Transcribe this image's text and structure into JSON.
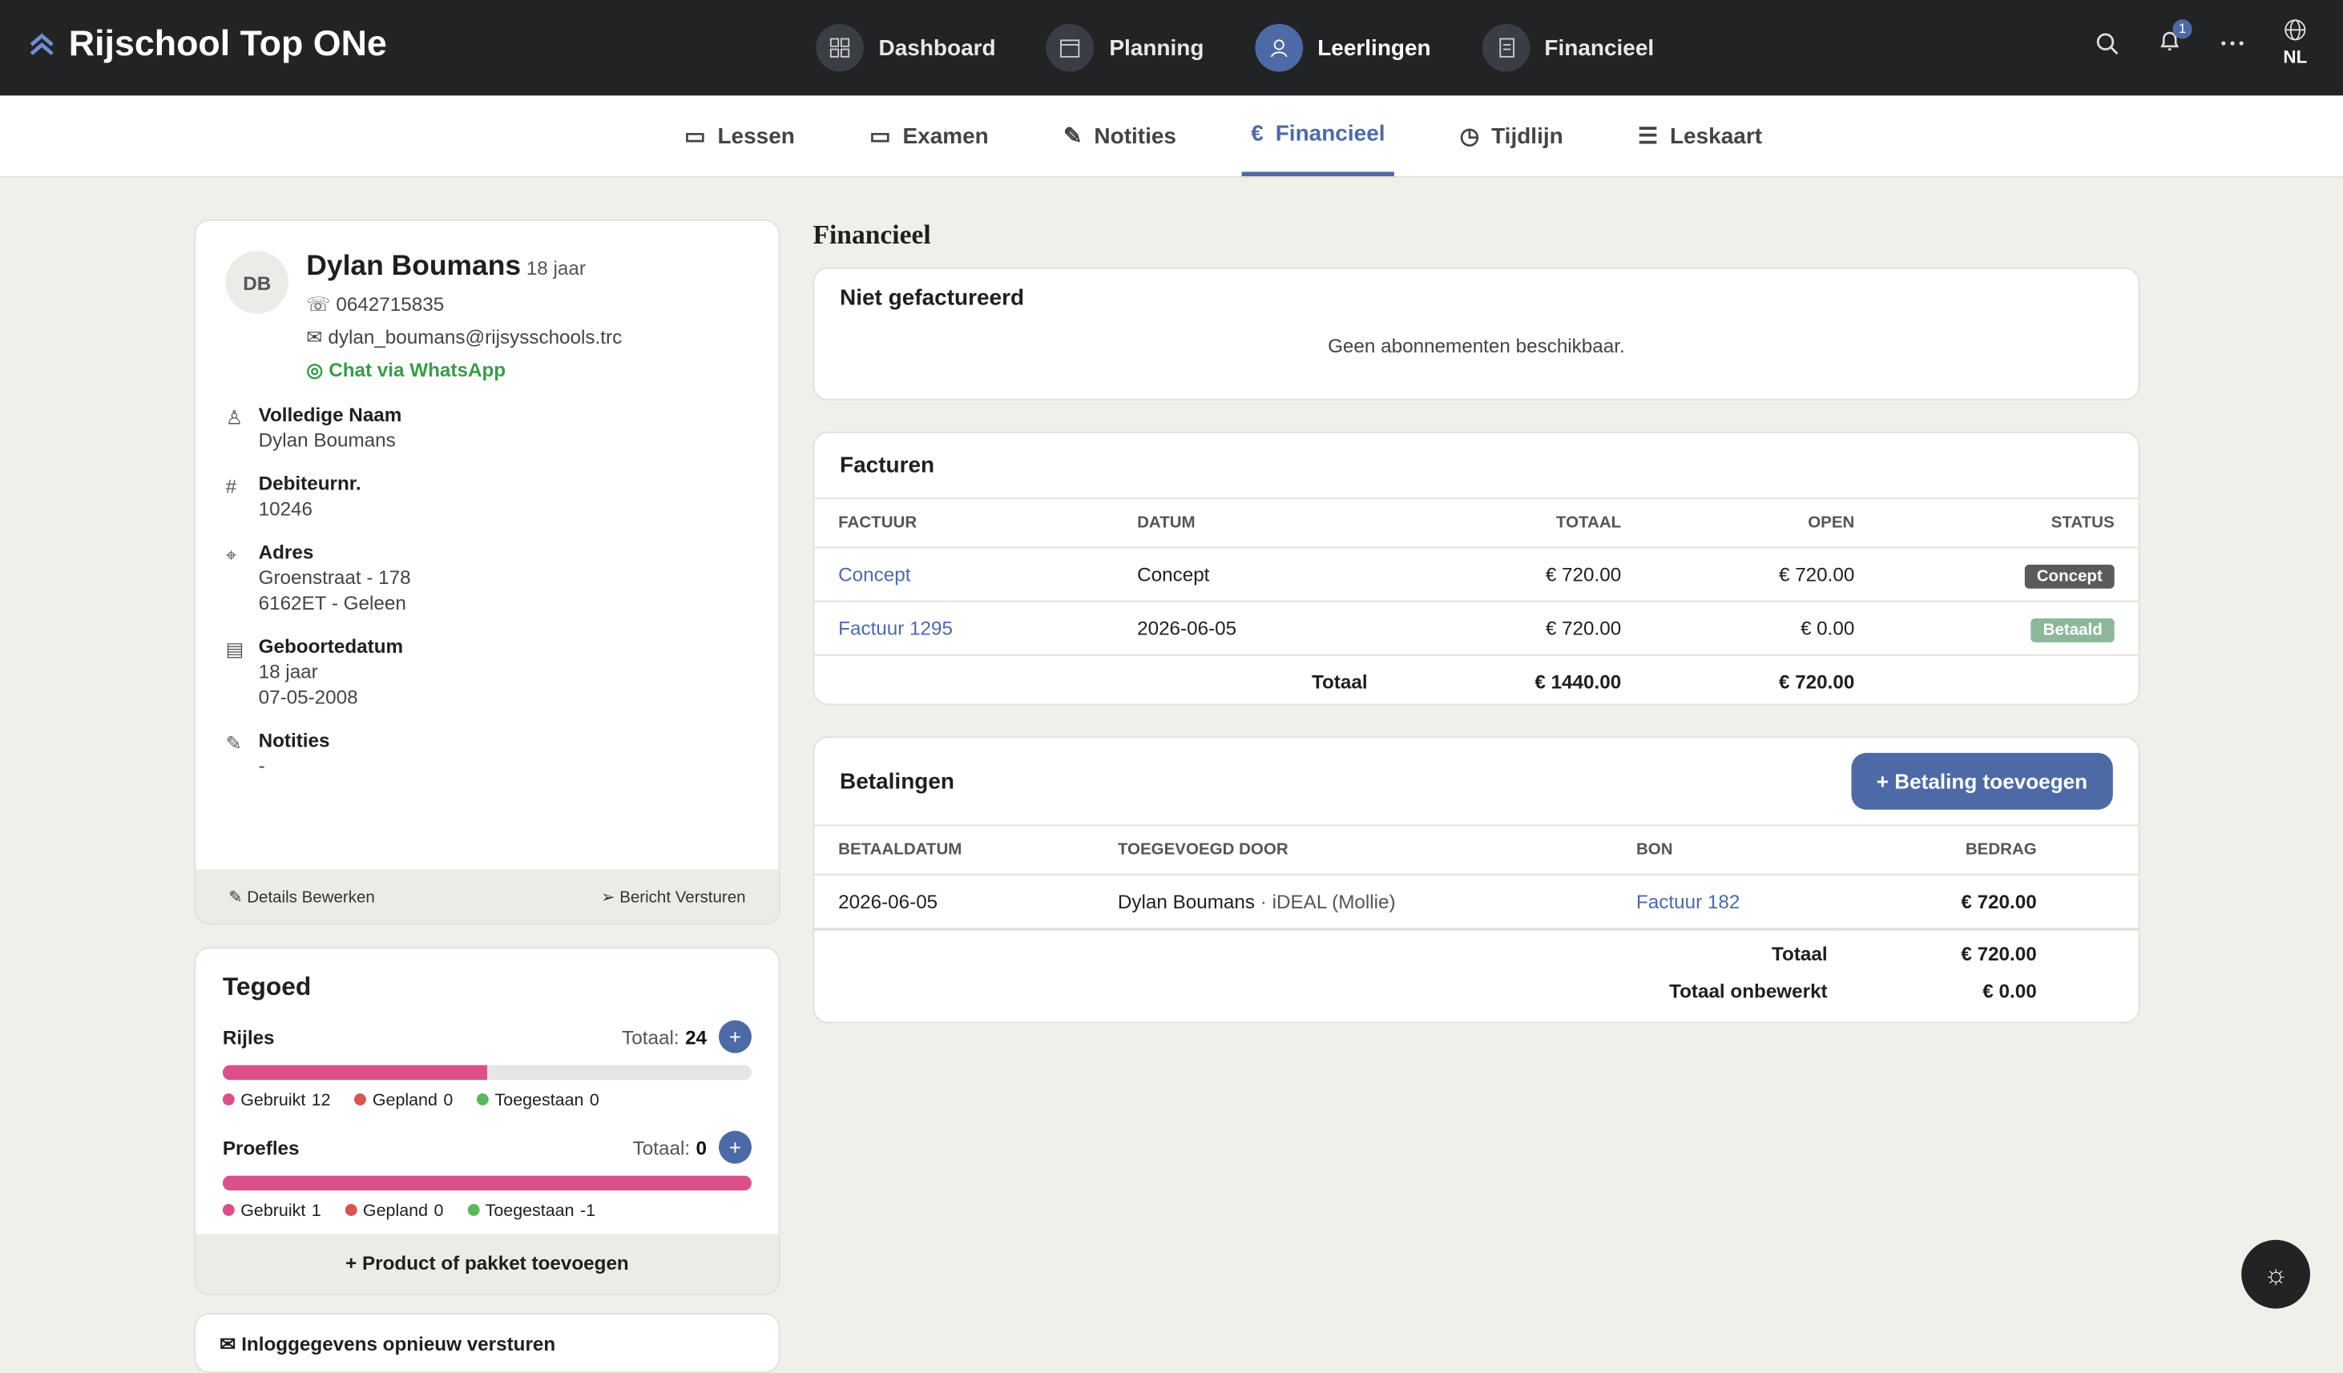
{
  "header": {
    "brand": "Rijschool Top ONe",
    "nav": [
      "Dashboard",
      "Planning",
      "Leerlingen",
      "Financieel"
    ],
    "notifications": 1,
    "language": "NL"
  },
  "tabs": [
    "Lessen",
    "Examen",
    "Notities",
    "Financieel",
    "Tijdlijn",
    "Leskaart"
  ],
  "profile": {
    "initials": "DB",
    "name": "Dylan Boumans",
    "age": "18 jaar",
    "phone": "0642715835",
    "email": "dylan_boumans@rijsysschools.trc",
    "whatsapp": "Chat via WhatsApp",
    "fields": [
      {
        "label": "Volledige Naam",
        "lines": [
          "Dylan Boumans"
        ]
      },
      {
        "label": "Debiteurnr.",
        "lines": [
          "10246"
        ]
      },
      {
        "label": "Adres",
        "lines": [
          "Groenstraat - 178",
          "6162ET - Geleen"
        ]
      },
      {
        "label": "Geboortedatum",
        "lines": [
          "18 jaar",
          "07-05-2008"
        ]
      },
      {
        "label": "Notities",
        "lines": [
          "-"
        ]
      }
    ],
    "actions": [
      "Details Bewerken",
      "Bericht Versturen"
    ]
  },
  "tegoed": {
    "title": "Tegoed",
    "total_label": "Totaal:",
    "legend": [
      "Gebruikt",
      "Gepland",
      "Toegestaan"
    ],
    "items": [
      {
        "name": "Rijles",
        "total": 24,
        "used": 12,
        "planned": 0,
        "allowed": 0
      },
      {
        "name": "Proefles",
        "total": 0,
        "used": 1,
        "planned": 0,
        "allowed": -1
      }
    ],
    "add": "+ Product of pakket toevoegen"
  },
  "resend": "Inloggegevens opnieuw versturen",
  "financieel": {
    "title": "Financieel",
    "not_invoiced": {
      "title": "Niet gefactureerd",
      "empty": "Geen abonnementen beschikbaar."
    },
    "invoices": {
      "title": "Facturen",
      "columns": [
        "FACTUUR",
        "DATUM",
        "TOTAAL",
        "OPEN",
        "STATUS"
      ],
      "rows": [
        [
          "Concept",
          "Concept",
          "€ 720.00",
          "€ 720.00",
          "Concept"
        ],
        [
          "Factuur 1295",
          "2026-06-05",
          "€ 720.00",
          "€ 0.00",
          "Betaald"
        ]
      ],
      "total": [
        "Totaal",
        "€ 1440.00",
        "€ 720.00"
      ]
    },
    "payments": {
      "title": "Betalingen",
      "add": "+ Betaling toevoegen",
      "columns": [
        "BETAALDATUM",
        "TOEGEVOEGD DOOR",
        "BON",
        "BEDRAG"
      ],
      "rows": [
        {
          "date": "2026-06-05",
          "by": "Dylan Boumans",
          "method": "· iDEAL (Mollie)",
          "receipt": "Factuur 182",
          "amount": "€ 720.00"
        }
      ],
      "totals": [
        [
          "Totaal",
          "€ 720.00"
        ],
        [
          "Totaal onbewerkt",
          "€ 0.00"
        ]
      ]
    }
  }
}
